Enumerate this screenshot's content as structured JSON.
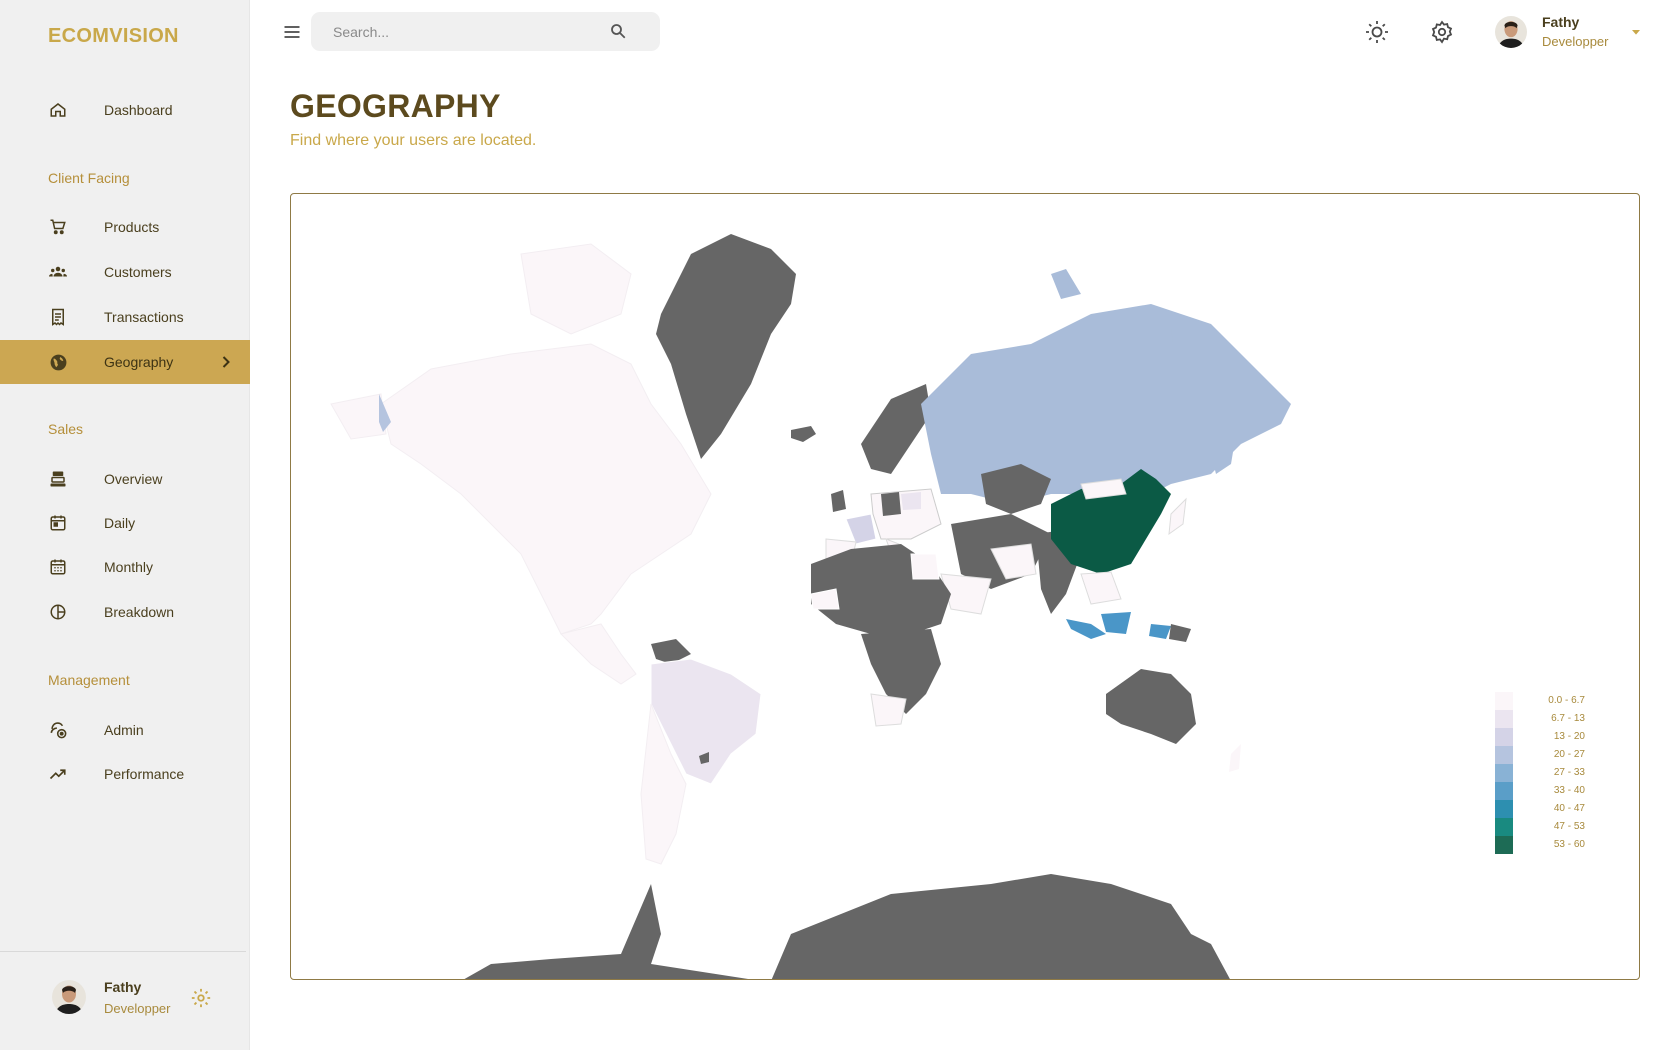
{
  "brand": "ECOMVISION",
  "search": {
    "placeholder": "Search..."
  },
  "user": {
    "name": "Fathy",
    "role": "Developper"
  },
  "sidebar": {
    "items": [
      {
        "label": "Dashboard",
        "icon": "home-icon"
      },
      {
        "section": "Client Facing"
      },
      {
        "label": "Products",
        "icon": "shopping-cart-icon"
      },
      {
        "label": "Customers",
        "icon": "groups-icon"
      },
      {
        "label": "Transactions",
        "icon": "receipt-icon"
      },
      {
        "label": "Geography",
        "icon": "globe-icon",
        "active": true
      },
      {
        "section": "Sales"
      },
      {
        "label": "Overview",
        "icon": "point-of-sale-icon"
      },
      {
        "label": "Daily",
        "icon": "today-icon"
      },
      {
        "label": "Monthly",
        "icon": "calendar-month-icon"
      },
      {
        "label": "Breakdown",
        "icon": "pie-chart-icon"
      },
      {
        "section": "Management"
      },
      {
        "label": "Admin",
        "icon": "admin-icon"
      },
      {
        "label": "Performance",
        "icon": "trending-up-icon"
      }
    ]
  },
  "header": {
    "title": "GEOGRAPHY",
    "subtitle": "Find where your users are located."
  },
  "legend": {
    "items": [
      {
        "label": "0.0 - 6.7",
        "color": "#fbf6f9"
      },
      {
        "label": "6.7 - 13",
        "color": "#ebe5f0"
      },
      {
        "label": "13 - 20",
        "color": "#d4d3e7"
      },
      {
        "label": "20 - 27",
        "color": "#b5c4df"
      },
      {
        "label": "27 - 33",
        "color": "#89b2d5"
      },
      {
        "label": "33 - 40",
        "color": "#5a9ec8"
      },
      {
        "label": "40 - 47",
        "color": "#2d8fb0"
      },
      {
        "label": "47 - 53",
        "color": "#198a80"
      },
      {
        "label": "53 - 60",
        "color": "#1d6b55"
      }
    ]
  },
  "colors": {
    "accent": "#cca752",
    "brand": "#c9a84a",
    "no_data": "#666666",
    "china": "#0b5a45"
  }
}
